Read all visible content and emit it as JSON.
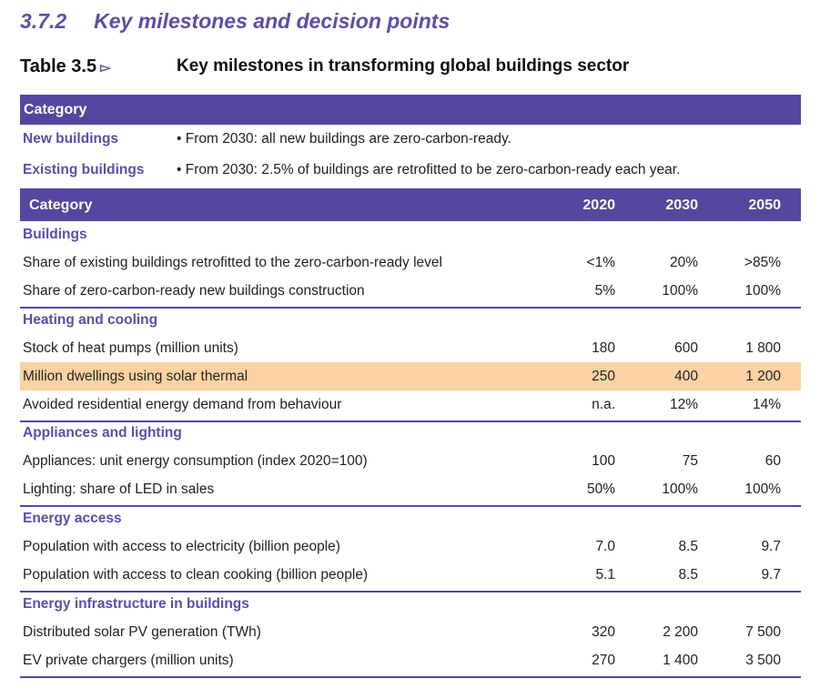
{
  "section": {
    "number": "3.7.2",
    "title": "Key milestones and decision points"
  },
  "caption": {
    "label": "Table 3.5",
    "arrow": "▻",
    "title": "Key milestones in transforming global buildings sector"
  },
  "policy_table": {
    "header": "Category",
    "rows": [
      {
        "category": "New buildings",
        "text": "•  From 2030: all new buildings are zero-carbon-ready."
      },
      {
        "category": "Existing buildings",
        "text": "•  From 2030: 2.5% of buildings are retrofitted to be zero-carbon-ready each year."
      }
    ]
  },
  "milestone_table": {
    "headers": [
      "Category",
      "2020",
      "2030",
      "2050"
    ],
    "highlight_color": "#fbd3a3",
    "header_color": "#5347a0",
    "sections": [
      {
        "title": "Buildings",
        "rows": [
          {
            "label": "Share of existing buildings retrofitted to the zero-carbon-ready level",
            "values": [
              "<1%",
              "20%",
              ">85%"
            ]
          },
          {
            "label": "Share of zero-carbon-ready new buildings construction",
            "values": [
              "5%",
              "100%",
              "100%"
            ]
          }
        ]
      },
      {
        "title": "Heating and cooling",
        "rows": [
          {
            "label": "Stock of heat pumps (million units)",
            "values": [
              "180",
              "600",
              "1 800"
            ]
          },
          {
            "label": "Million dwellings using solar thermal",
            "values": [
              "250",
              "400",
              "1 200"
            ],
            "highlighted": true
          },
          {
            "label": "Avoided residential energy demand from behaviour",
            "values": [
              "n.a.",
              "12%",
              "14%"
            ]
          }
        ]
      },
      {
        "title": "Appliances and lighting",
        "rows": [
          {
            "label": "Appliances: unit energy consumption (index 2020=100)",
            "values": [
              "100",
              "75",
              "60"
            ]
          },
          {
            "label": "Lighting: share of LED in sales",
            "values": [
              "50%",
              "100%",
              "100%"
            ]
          }
        ]
      },
      {
        "title": "Energy access",
        "rows": [
          {
            "label": "Population with access to electricity (billion people)",
            "values": [
              "7.0",
              "8.5",
              "9.7"
            ]
          },
          {
            "label": "Population with access to clean cooking (billion people)",
            "values": [
              "5.1",
              "8.5",
              "9.7"
            ]
          }
        ]
      },
      {
        "title": "Energy infrastructure in buildings",
        "rows": [
          {
            "label": "Distributed solar PV generation (TWh)",
            "values": [
              "320",
              "2 200",
              "7 500"
            ]
          },
          {
            "label": "EV private chargers (million units)",
            "values": [
              "270",
              "1 400",
              "3 500"
            ]
          }
        ]
      }
    ]
  }
}
